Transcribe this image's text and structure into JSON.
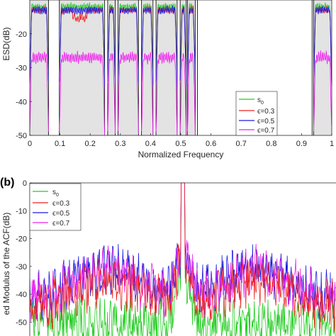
{
  "chart_data": [
    {
      "type": "line",
      "xlabel": "Normalized Frequency",
      "ylabel": "ESD(dB)",
      "xlim": [
        0,
        1
      ],
      "ylim": [
        -50,
        -10
      ],
      "x_ticks": [
        "0",
        "0.1",
        "0.2",
        "0.3",
        "0.4",
        "0.5",
        "0.6",
        "0.7",
        "0.8",
        "0.9",
        "1"
      ],
      "y_ticks": [
        "-20",
        "-30",
        "-40",
        "-50"
      ],
      "stopbands": [
        [
          0.062,
          0.098
        ],
        [
          0.248,
          0.258
        ],
        [
          0.283,
          0.292
        ],
        [
          0.36,
          0.37
        ],
        [
          0.408,
          0.418
        ],
        [
          0.488,
          0.498
        ],
        [
          0.518,
          0.522
        ],
        [
          0.548,
          0.555
        ],
        [
          0.935,
          0.94
        ]
      ],
      "passbands": [
        [
          0.0,
          0.062
        ],
        [
          0.098,
          0.248
        ],
        [
          0.258,
          0.283
        ],
        [
          0.292,
          0.36
        ],
        [
          0.37,
          0.408
        ],
        [
          0.418,
          0.488
        ],
        [
          0.498,
          0.518
        ],
        [
          0.522,
          0.548
        ],
        [
          0.94,
          1.0
        ]
      ],
      "legend_position": "bottom-right",
      "series": [
        {
          "name": "s",
          "name_subscript": "0",
          "color": "#22cc22",
          "passband_level_db": -12
        },
        {
          "name": "ϵ=0.3",
          "color": "#ee2222",
          "passband_level_db": -13
        },
        {
          "name": "ϵ=0.5",
          "color": "#1a1ae0",
          "passband_level_db": -13
        },
        {
          "name": "ϵ=0.7",
          "color": "#ee22ee",
          "passband_level_db": -27
        }
      ]
    },
    {
      "type": "line",
      "panel_label": "(b)",
      "ylabel": "ed Modulus of the ACF(dB)",
      "ylim": [
        -55,
        0
      ],
      "y_ticks": [
        "0",
        "-10",
        "-20",
        "-30",
        "-40",
        "-50"
      ],
      "peak_db": 0,
      "legend_position": "top-left",
      "series": [
        {
          "name": "s",
          "name_subscript": "0",
          "color": "#22cc22",
          "sidelobe_level_db": -43
        },
        {
          "name": "ϵ=0.3",
          "color": "#ee2222",
          "sidelobe_level_db": -37
        },
        {
          "name": "ϵ=0.5",
          "color": "#1a1ae0",
          "sidelobe_level_db": -33
        },
        {
          "name": "ϵ=0.7",
          "color": "#ee22ee",
          "sidelobe_level_db": -34
        }
      ]
    }
  ]
}
